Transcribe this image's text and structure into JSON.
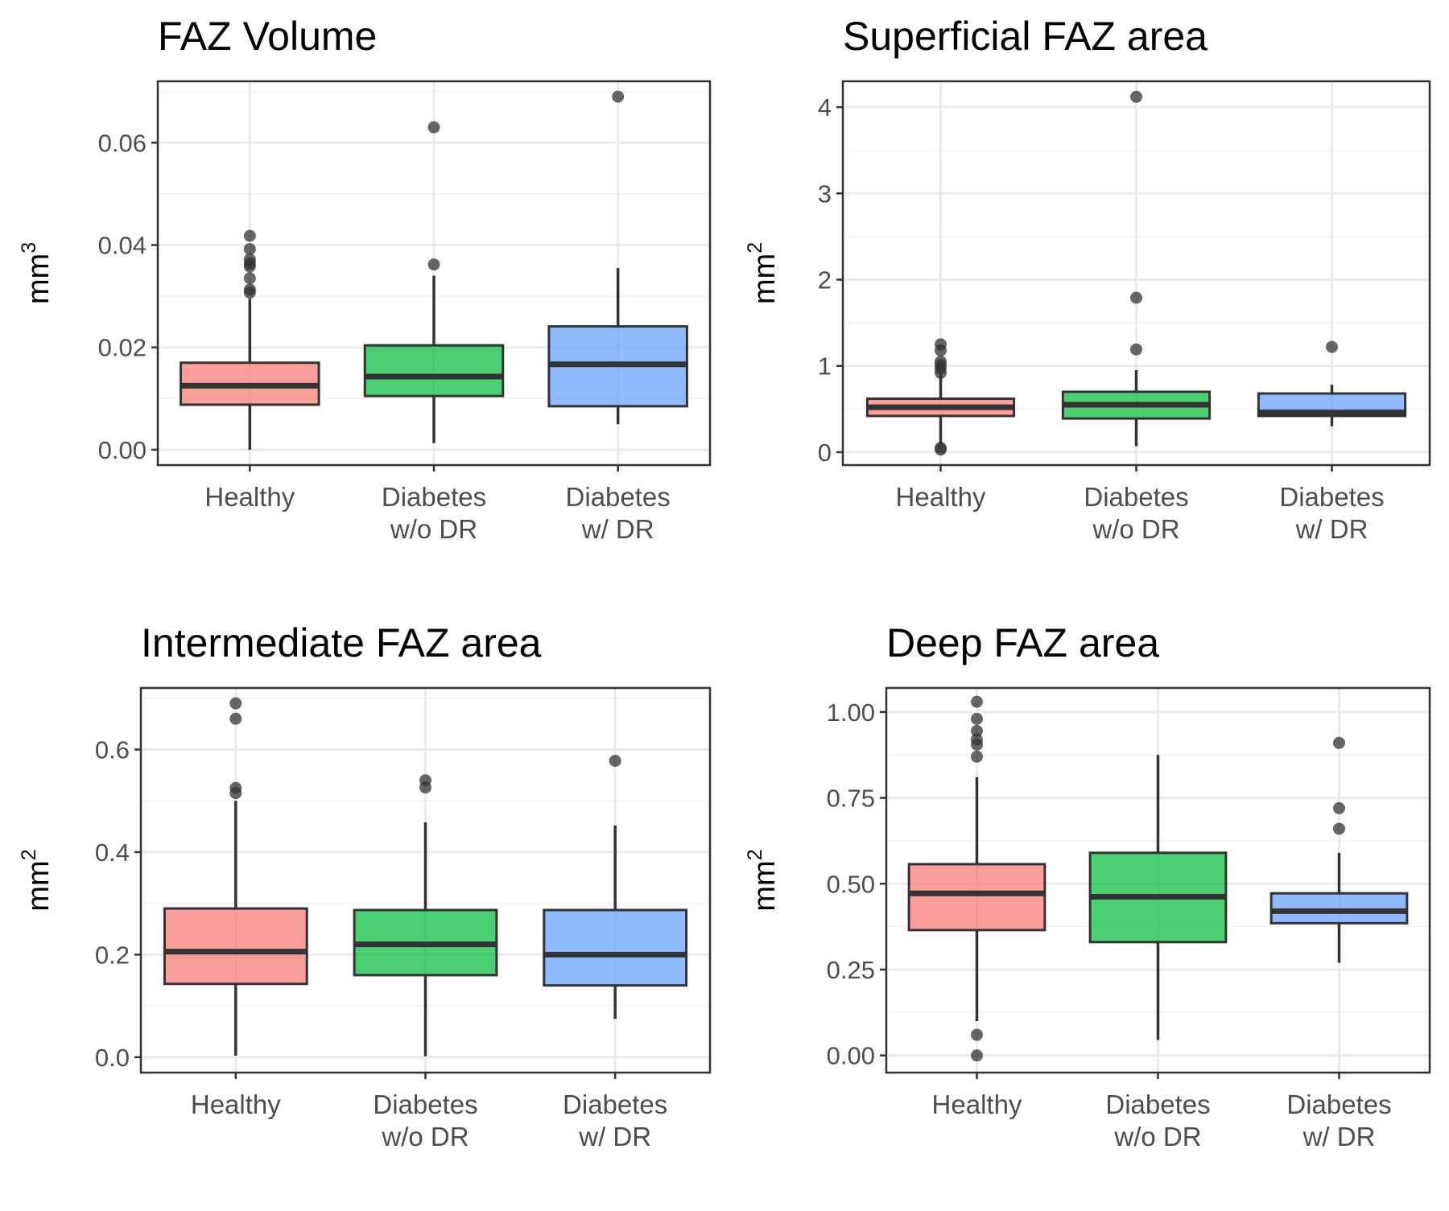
{
  "chart_data": [
    {
      "type": "box",
      "title": "FAZ Volume",
      "ylabel": "mm",
      "ylabel_exponent": "3",
      "categories": [
        [
          "Healthy"
        ],
        [
          "Diabetes",
          "w/o DR"
        ],
        [
          "Diabetes",
          "w/ DR"
        ]
      ],
      "ylim": [
        -0.003,
        0.072
      ],
      "yticks": [
        0.0,
        0.02,
        0.04,
        0.06
      ],
      "ytick_labels": [
        "0.00",
        "0.02",
        "0.04",
        "0.06"
      ],
      "grid": true,
      "colors": [
        "#F8766D",
        "#00BA38",
        "#619CFF"
      ],
      "boxes": [
        {
          "whisker_low": 0.0,
          "q1": 0.0088,
          "median": 0.0125,
          "q3": 0.017,
          "whisker_high": 0.0295,
          "outliers": [
            0.0307,
            0.0313,
            0.0335,
            0.0358,
            0.0364,
            0.0372,
            0.0392,
            0.0418
          ]
        },
        {
          "whisker_low": 0.0013,
          "q1": 0.0105,
          "median": 0.0143,
          "q3": 0.0204,
          "whisker_high": 0.034,
          "outliers": [
            0.0362,
            0.063
          ]
        },
        {
          "whisker_low": 0.005,
          "q1": 0.0085,
          "median": 0.0167,
          "q3": 0.0241,
          "whisker_high": 0.0355,
          "outliers": [
            0.069
          ]
        }
      ]
    },
    {
      "type": "box",
      "title": "Superficial FAZ area",
      "ylabel": "mm",
      "ylabel_exponent": "2",
      "categories": [
        [
          "Healthy"
        ],
        [
          "Diabetes",
          "w/o DR"
        ],
        [
          "Diabetes",
          "w/ DR"
        ]
      ],
      "ylim": [
        -0.15,
        4.3
      ],
      "yticks": [
        0,
        1,
        2,
        3,
        4
      ],
      "ytick_labels": [
        "0",
        "1",
        "2",
        "3",
        "4"
      ],
      "grid": true,
      "colors": [
        "#F8766D",
        "#00BA38",
        "#619CFF"
      ],
      "boxes": [
        {
          "whisker_low": 0.08,
          "q1": 0.42,
          "median": 0.52,
          "q3": 0.62,
          "whisker_high": 0.9,
          "outliers": [
            0.03,
            0.05,
            0.92,
            0.97,
            1.01,
            1.05,
            1.18,
            1.25
          ]
        },
        {
          "whisker_low": 0.07,
          "q1": 0.39,
          "median": 0.55,
          "q3": 0.7,
          "whisker_high": 0.95,
          "outliers": [
            1.19,
            1.79,
            4.12
          ]
        },
        {
          "whisker_low": 0.3,
          "q1": 0.42,
          "median": 0.46,
          "q3": 0.68,
          "whisker_high": 0.78,
          "outliers": [
            1.22
          ]
        }
      ]
    },
    {
      "type": "box",
      "title": "Intermediate FAZ area",
      "ylabel": "mm",
      "ylabel_exponent": "2",
      "categories": [
        [
          "Healthy"
        ],
        [
          "Diabetes",
          "w/o DR"
        ],
        [
          "Diabetes",
          "w/ DR"
        ]
      ],
      "ylim": [
        -0.03,
        0.72
      ],
      "yticks": [
        0.0,
        0.2,
        0.4,
        0.6
      ],
      "ytick_labels": [
        "0.0",
        "0.2",
        "0.4",
        "0.6"
      ],
      "grid": true,
      "colors": [
        "#F8766D",
        "#00BA38",
        "#619CFF"
      ],
      "boxes": [
        {
          "whisker_low": 0.003,
          "q1": 0.143,
          "median": 0.206,
          "q3": 0.29,
          "whisker_high": 0.5,
          "outliers": [
            0.515,
            0.525,
            0.66,
            0.69
          ]
        },
        {
          "whisker_low": 0.002,
          "q1": 0.16,
          "median": 0.22,
          "q3": 0.287,
          "whisker_high": 0.458,
          "outliers": [
            0.526,
            0.54
          ]
        },
        {
          "whisker_low": 0.075,
          "q1": 0.14,
          "median": 0.2,
          "q3": 0.287,
          "whisker_high": 0.452,
          "outliers": [
            0.578
          ]
        }
      ]
    },
    {
      "type": "box",
      "title": "Deep FAZ area",
      "ylabel": "mm",
      "ylabel_exponent": "2",
      "categories": [
        [
          "Healthy"
        ],
        [
          "Diabetes",
          "w/o DR"
        ],
        [
          "Diabetes",
          "w/ DR"
        ]
      ],
      "ylim": [
        -0.05,
        1.07
      ],
      "yticks": [
        0.0,
        0.25,
        0.5,
        0.75,
        1.0
      ],
      "ytick_labels": [
        "0.00",
        "0.25",
        "0.50",
        "0.75",
        "1.00"
      ],
      "grid": true,
      "colors": [
        "#F8766D",
        "#00BA38",
        "#619CFF"
      ],
      "boxes": [
        {
          "whisker_low": 0.1,
          "q1": 0.365,
          "median": 0.472,
          "q3": 0.557,
          "whisker_high": 0.81,
          "outliers": [
            0.0,
            0.06,
            0.87,
            0.905,
            0.92,
            0.945,
            0.98,
            1.03
          ]
        },
        {
          "whisker_low": 0.045,
          "q1": 0.33,
          "median": 0.462,
          "q3": 0.59,
          "whisker_high": 0.875,
          "outliers": []
        },
        {
          "whisker_low": 0.27,
          "q1": 0.385,
          "median": 0.42,
          "q3": 0.472,
          "whisker_high": 0.59,
          "outliers": [
            0.66,
            0.72,
            0.91
          ]
        }
      ]
    }
  ]
}
